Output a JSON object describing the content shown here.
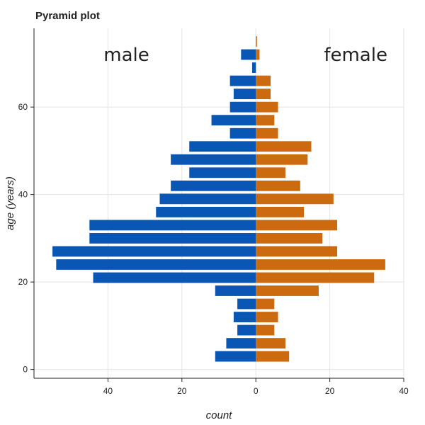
{
  "chart_data": {
    "type": "bar",
    "orientation": "horizontal-pyramid",
    "title": "Pyramid plot",
    "xlabel": "count",
    "ylabel": "age (years)",
    "xlim": [
      -60,
      40
    ],
    "ylim": [
      -2,
      78
    ],
    "x_ticks": [
      {
        "value": -40,
        "label": "40"
      },
      {
        "value": -20,
        "label": "20"
      },
      {
        "value": 0,
        "label": "0"
      },
      {
        "value": 20,
        "label": "20"
      },
      {
        "value": 40,
        "label": "40"
      }
    ],
    "y_ticks": [
      {
        "value": 0,
        "label": "0"
      },
      {
        "value": 20,
        "label": "20"
      },
      {
        "value": 40,
        "label": "40"
      },
      {
        "value": 60,
        "label": "60"
      }
    ],
    "grid": true,
    "bin_width": 3,
    "age_bins": [
      3,
      6,
      9,
      12,
      15,
      18,
      21,
      24,
      27,
      30,
      33,
      36,
      39,
      42,
      45,
      48,
      51,
      54,
      57,
      60,
      63,
      66,
      69,
      72,
      75
    ],
    "series": [
      {
        "name": "male",
        "color": "#0a56b5",
        "values": [
          11,
          8,
          5,
          6,
          5,
          11,
          44,
          54,
          55,
          45,
          45,
          27,
          26,
          23,
          18,
          23,
          18,
          7,
          12,
          7,
          6,
          7,
          1,
          4,
          0
        ]
      },
      {
        "name": "female",
        "color": "#cc6a0f",
        "values": [
          9,
          8,
          5,
          6,
          5,
          17,
          32,
          35,
          22,
          18,
          22,
          13,
          21,
          12,
          8,
          14,
          15,
          6,
          5,
          6,
          4,
          4,
          0,
          1,
          0.3
        ]
      }
    ],
    "annotations": [
      {
        "text": "male",
        "x": -35,
        "y": 72
      },
      {
        "text": "female",
        "x": 27,
        "y": 72
      }
    ]
  }
}
